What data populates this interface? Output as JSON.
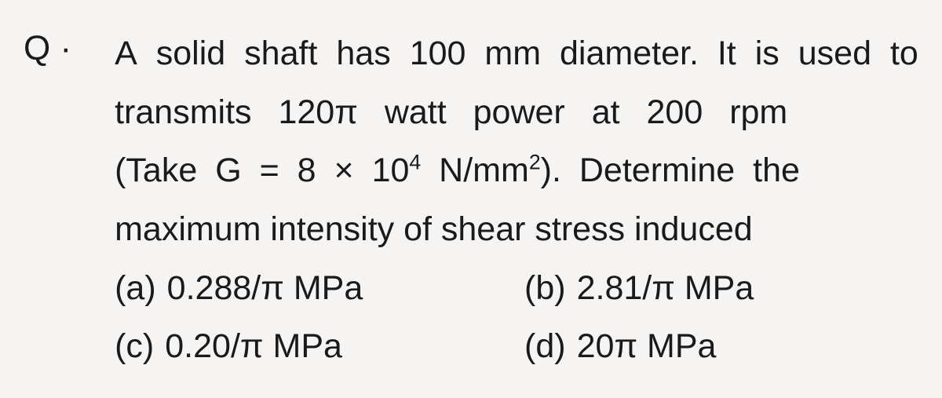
{
  "label": "Q ·",
  "question": {
    "line1_words": [
      "A",
      "solid",
      "shaft",
      "has",
      "100",
      "mm",
      "diameter.",
      "It",
      "is",
      "used",
      "to"
    ],
    "line2": "transmits 120π watt power at 200 rpm",
    "line3_pre": "(Take G = 8 × 10",
    "line3_sup1": "4",
    "line3_mid": " N/mm",
    "line3_sup2": "2",
    "line3_post": "). Determine the",
    "line4": "maximum intensity of shear stress induced"
  },
  "options": {
    "a": {
      "label": "(a)",
      "text": "0.288/π MPa"
    },
    "b": {
      "label": "(b)",
      "text": "2.81/π MPa"
    },
    "c": {
      "label": "(c)",
      "text": "0.20/π MPa"
    },
    "d": {
      "label": "(d)",
      "text": "20π MPa"
    }
  },
  "styling": {
    "background_color": "#f5f4f2",
    "text_color": "#1a1a1a",
    "font_size_pt": 32,
    "font_family": "Arial"
  }
}
